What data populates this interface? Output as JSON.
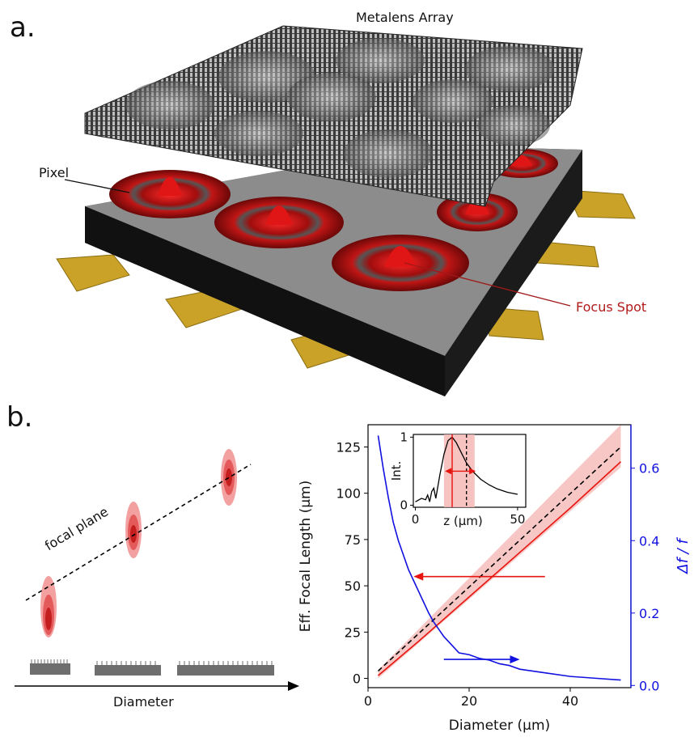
{
  "panel_a": {
    "label": "a.",
    "title": "Metalens Array",
    "pixel_label": "Pixel",
    "focus_label": "Focus Spot",
    "colors": {
      "focus": "#b11a1a",
      "lead": "#c9a227",
      "frame": "#8c8c8c"
    }
  },
  "panel_b": {
    "label": "b.",
    "focal_plane_label": "focal plane",
    "diameter_label": "Diameter"
  },
  "chart_data": [
    {
      "type": "line",
      "xlabel": "Diameter (μm)",
      "ylabel": "Eff. Focal Length (μm)",
      "ylabel_right": "Δf / f",
      "xlim": [
        0,
        52
      ],
      "ylim": [
        -5,
        137
      ],
      "ylim_right": [
        -0.006,
        0.72
      ],
      "xticks": [
        0,
        20,
        40
      ],
      "yticks": [
        0,
        25,
        50,
        75,
        100,
        125
      ],
      "yticks_right": [
        0.0,
        0.2,
        0.4,
        0.6
      ],
      "colors": {
        "focal": "#e8140f",
        "band": "#f4b9b5",
        "ideal": "#000000",
        "dff": "#1010e0"
      },
      "series": [
        {
          "kind": "band",
          "x": [
            2,
            50
          ],
          "lower": [
            0,
            114
          ],
          "upper": [
            4.5,
            137
          ]
        },
        {
          "kind": "line",
          "x": [
            2,
            10,
            20,
            30,
            40,
            50
          ],
          "y": [
            1.5,
            20,
            44,
            68,
            92,
            117
          ]
        },
        {
          "kind": "dashed",
          "x": [
            2,
            50
          ],
          "y": [
            4,
            125
          ]
        },
        {
          "kind": "line-right",
          "x": [
            2,
            3,
            4,
            5,
            6,
            7,
            8,
            9,
            10,
            11,
            12,
            13,
            14,
            15,
            16,
            17,
            18,
            20,
            22,
            24,
            26,
            28,
            30,
            35,
            40,
            45,
            50
          ],
          "y": [
            0.69,
            0.6,
            0.52,
            0.45,
            0.4,
            0.36,
            0.32,
            0.29,
            0.26,
            0.23,
            0.2,
            0.175,
            0.155,
            0.135,
            0.12,
            0.105,
            0.09,
            0.085,
            0.075,
            0.07,
            0.06,
            0.055,
            0.045,
            0.035,
            0.025,
            0.02,
            0.015
          ]
        }
      ]
    },
    {
      "type": "line",
      "xlabel": "z (μm)",
      "ylabel": "Int.",
      "xlim": [
        -1,
        54
      ],
      "ylim": [
        -0.03,
        1.04
      ],
      "xticks": [
        0,
        50
      ],
      "yticks": [
        0,
        1
      ],
      "x": [
        0,
        3,
        5,
        6,
        7,
        8,
        9,
        10,
        12,
        14,
        16,
        18,
        20,
        22,
        25,
        28,
        32,
        36,
        40,
        45,
        50
      ],
      "y": [
        0.05,
        0.1,
        0.08,
        0.15,
        0.05,
        0.2,
        0.25,
        0.1,
        0.45,
        0.75,
        0.95,
        1.0,
        0.92,
        0.8,
        0.62,
        0.5,
        0.38,
        0.3,
        0.24,
        0.19,
        0.16
      ]
    }
  ]
}
